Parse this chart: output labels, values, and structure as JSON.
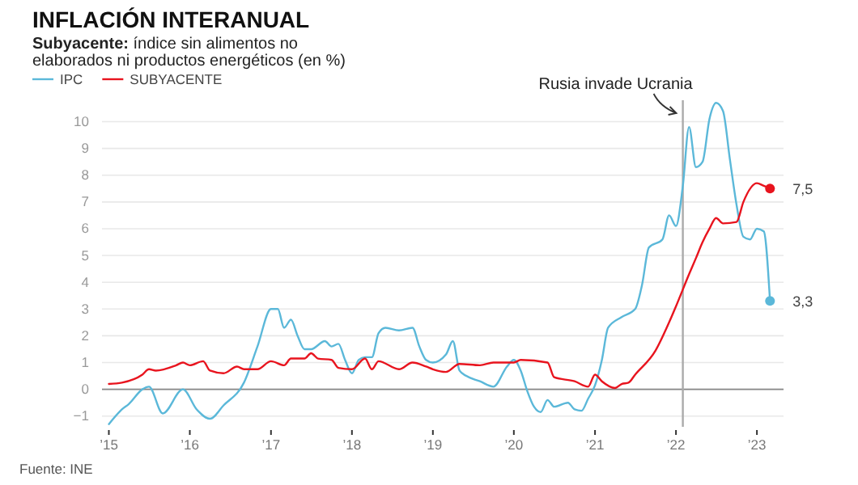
{
  "chart_data": {
    "type": "line",
    "title": "INFLACIÓN INTERANUAL",
    "subtitle": "Subyacente: índice sin alimentos no elaborados ni productos energéticos (en %)",
    "xlim": [
      "2014-12",
      "2023-05"
    ],
    "ylim": [
      -1.4,
      10.8
    ],
    "xticks": [
      {
        "value": "2015-01",
        "label": "’15"
      },
      {
        "value": "2016-01",
        "label": "’16"
      },
      {
        "value": "2017-01",
        "label": "’17"
      },
      {
        "value": "2018-01",
        "label": "’18"
      },
      {
        "value": "2019-01",
        "label": "’19"
      },
      {
        "value": "2020-01",
        "label": "’20"
      },
      {
        "value": "2021-01",
        "label": "’21"
      },
      {
        "value": "2022-01",
        "label": "’22"
      },
      {
        "value": "2023-01",
        "label": "’23"
      }
    ],
    "yticks": [
      {
        "value": -1,
        "label": "−1"
      },
      0,
      1,
      2,
      3,
      4,
      5,
      6,
      7,
      8,
      9,
      10
    ],
    "grid": "y",
    "legend": "top left",
    "line_style": "solid",
    "series": [
      {
        "name": "IPC",
        "color": "#5bb8d9",
        "x": [
          "2015-01",
          "2015-03",
          "2015-04",
          "2015-06",
          "2015-07",
          "2015-09",
          "2015-12",
          "2016-02",
          "2016-04",
          "2016-06",
          "2016-09",
          "2016-11",
          "2017-01",
          "2017-02",
          "2017-03",
          "2017-04",
          "2017-05",
          "2017-06",
          "2017-07",
          "2017-09",
          "2017-10",
          "2017-11",
          "2017-12",
          "2018-01",
          "2018-02",
          "2018-03",
          "2018-04",
          "2018-05",
          "2018-06",
          "2018-08",
          "2018-10",
          "2018-11",
          "2018-12",
          "2019-01",
          "2019-03",
          "2019-04",
          "2019-05",
          "2019-06",
          "2019-08",
          "2019-10",
          "2019-12",
          "2020-01",
          "2020-02",
          "2020-03",
          "2020-04",
          "2020-05",
          "2020-06",
          "2020-07",
          "2020-09",
          "2020-10",
          "2020-11",
          "2020-12",
          "2021-01",
          "2021-02",
          "2021-03",
          "2021-05",
          "2021-07",
          "2021-08",
          "2021-09",
          "2021-11",
          "2021-12",
          "2022-01",
          "2022-02",
          "2022-03",
          "2022-04",
          "2022-05",
          "2022-06",
          "2022-07",
          "2022-08",
          "2022-09",
          "2022-10",
          "2022-11",
          "2022-12",
          "2023-01",
          "2023-02",
          "2023-03"
        ],
        "values": [
          -1.3,
          -0.75,
          -0.55,
          0,
          0.1,
          -0.9,
          0,
          -0.75,
          -1.1,
          -0.6,
          0.25,
          1.6,
          3.0,
          3.0,
          2.3,
          2.6,
          2.0,
          1.5,
          1.5,
          1.8,
          1.6,
          1.7,
          1.1,
          0.6,
          1.1,
          1.2,
          1.2,
          2.1,
          2.3,
          2.2,
          2.3,
          1.6,
          1.1,
          1.0,
          1.3,
          1.8,
          0.7,
          0.5,
          0.3,
          0.1,
          0.85,
          1.1,
          0.7,
          -0.05,
          -0.65,
          -0.85,
          -0.4,
          -0.65,
          -0.5,
          -0.75,
          -0.8,
          -0.35,
          0.15,
          1.1,
          2.3,
          2.7,
          3.0,
          3.9,
          5.3,
          5.6,
          6.5,
          6.1,
          7.6,
          9.8,
          8.3,
          8.5,
          10.1,
          10.7,
          10.4,
          8.6,
          6.9,
          5.7,
          5.6,
          6.0,
          5.9,
          3.3
        ]
      },
      {
        "name": "SUBYACENTE",
        "color": "#e8141e",
        "x": [
          "2015-01",
          "2015-03",
          "2015-06",
          "2015-07",
          "2015-08",
          "2015-11",
          "2015-12",
          "2016-01",
          "2016-03",
          "2016-04",
          "2016-06",
          "2016-08",
          "2016-09",
          "2016-11",
          "2017-01",
          "2017-03",
          "2017-04",
          "2017-06",
          "2017-07",
          "2017-08",
          "2017-10",
          "2017-11",
          "2018-01",
          "2018-03",
          "2018-04",
          "2018-05",
          "2018-08",
          "2018-10",
          "2018-12",
          "2019-01",
          "2019-03",
          "2019-05",
          "2019-08",
          "2019-10",
          "2020-01",
          "2020-02",
          "2020-06",
          "2020-07",
          "2020-10",
          "2020-12",
          "2021-01",
          "2021-02",
          "2021-04",
          "2021-05",
          "2021-06",
          "2021-07",
          "2021-10",
          "2021-12",
          "2022-01",
          "2022-03",
          "2022-04",
          "2022-05",
          "2022-06",
          "2022-07",
          "2022-08",
          "2022-10",
          "2022-11",
          "2023-01",
          "2023-02",
          "2023-03"
        ],
        "values": [
          0.2,
          0.25,
          0.55,
          0.75,
          0.7,
          0.9,
          1.0,
          0.9,
          1.05,
          0.7,
          0.6,
          0.85,
          0.75,
          0.75,
          1.05,
          0.9,
          1.15,
          1.15,
          1.35,
          1.15,
          1.1,
          0.8,
          0.75,
          1.15,
          0.75,
          1.05,
          0.75,
          1.0,
          0.85,
          0.75,
          0.65,
          0.95,
          0.9,
          1.0,
          1.0,
          1.1,
          1.0,
          0.45,
          0.3,
          0.1,
          0.55,
          0.3,
          0.05,
          0.2,
          0.25,
          0.55,
          1.45,
          2.5,
          3.1,
          4.3,
          4.9,
          5.5,
          6.0,
          6.4,
          6.2,
          6.25,
          7.0,
          7.7,
          7.6,
          7.5
        ]
      }
    ],
    "ref_lines": [
      {
        "axis": "x",
        "value": "2022-02",
        "label": "Rusia invade Ucrania",
        "color": "#aaaaaa"
      }
    ],
    "annotations": [
      {
        "text": "7,5",
        "x": "2023-03",
        "y": 7.5
      },
      {
        "text": "3,3",
        "x": "2023-03",
        "y": 3.3
      },
      "Fuente: INE"
    ]
  }
}
